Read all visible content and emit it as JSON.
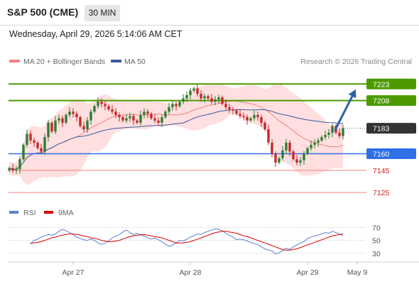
{
  "header": {
    "title": "S&P 500 (CME)",
    "timeframe": "30 MIN",
    "datetime": "Wednesday, April 29, 2026 5:14:06 AM CET"
  },
  "legend": {
    "ma20_bb": "MA 20 + Bollinger Bands",
    "ma50": "MA 50",
    "source": "Research © 2026 Trading Central",
    "rsi": "RSI",
    "ma9": "9MA"
  },
  "colors": {
    "up": "#2e7d32",
    "down": "#c62828",
    "bb_band": "#ffd9d9",
    "ma20": "#f08080",
    "ma50": "#3a5a9c",
    "resistance": "#4c9a00",
    "pivot": "#2f6fe8",
    "support": "#f08080",
    "current": "#333333",
    "rsi": "#5b7fd6",
    "ma9": "#dd0000",
    "arrow": "#2e5fa8"
  },
  "chart_data": [
    {
      "type": "candlestick",
      "ylim": [
        7118,
        7236
      ],
      "x_labels": [
        {
          "index": 18,
          "label": "Apr 27"
        },
        {
          "index": 51,
          "label": "Apr 28"
        },
        {
          "index": 84,
          "label": "Apr 29"
        },
        {
          "index": 98,
          "label": "May 9"
        }
      ],
      "levels": [
        {
          "value": 7223,
          "label": "7223",
          "kind": "resistance"
        },
        {
          "value": 7208,
          "label": "7208",
          "kind": "resistance"
        },
        {
          "value": 7183,
          "label": "7183",
          "kind": "current"
        },
        {
          "value": 7160,
          "label": "7160",
          "kind": "pivot"
        },
        {
          "value": 7145,
          "label": "7145",
          "kind": "support"
        },
        {
          "value": 7125,
          "label": "7125",
          "kind": "support"
        }
      ],
      "current_price": 7183,
      "projection": {
        "from_index": 91,
        "from_value": 7183,
        "to_index": 98,
        "to_value": 7222
      },
      "closes": [
        7147,
        7145,
        7146,
        7155,
        7168,
        7178,
        7172,
        7170,
        7165,
        7162,
        7175,
        7188,
        7180,
        7190,
        7192,
        7188,
        7195,
        7198,
        7196,
        7193,
        7185,
        7182,
        7190,
        7198,
        7203,
        7207,
        7205,
        7203,
        7200,
        7198,
        7195,
        7193,
        7190,
        7192,
        7194,
        7190,
        7188,
        7195,
        7198,
        7196,
        7192,
        7190,
        7188,
        7193,
        7198,
        7202,
        7205,
        7203,
        7207,
        7210,
        7213,
        7217,
        7219,
        7214,
        7210,
        7212,
        7210,
        7207,
        7209,
        7211,
        7205,
        7202,
        7200,
        7199,
        7196,
        7194,
        7193,
        7190,
        7192,
        7195,
        7193,
        7188,
        7182,
        7170,
        7160,
        7152,
        7156,
        7163,
        7170,
        7162,
        7155,
        7152,
        7154,
        7160,
        7165,
        7168,
        7170,
        7172,
        7175,
        7177,
        7179,
        7185,
        7179,
        7176,
        7183
      ]
    },
    {
      "type": "line",
      "title": "RSI",
      "ylim": [
        20,
        78
      ],
      "ticks": [
        30,
        50,
        70
      ],
      "series": [
        {
          "name": "RSI",
          "values": [
            44,
            50,
            52,
            55,
            57,
            59,
            58,
            60,
            64,
            67,
            65,
            62,
            59,
            55,
            53,
            51,
            50,
            52,
            50,
            46,
            44,
            46,
            49,
            54,
            56,
            59,
            63,
            66,
            62,
            59,
            61,
            58,
            57,
            54,
            52,
            54,
            51,
            48,
            44,
            41,
            43,
            46,
            50,
            49,
            52,
            55,
            57,
            60,
            59,
            62,
            64,
            66,
            68,
            67,
            65,
            61,
            58,
            55,
            51,
            52,
            51,
            49,
            47,
            45,
            44,
            40,
            37,
            35,
            34,
            29,
            31,
            34,
            38,
            36,
            40,
            43,
            46,
            48,
            53,
            55,
            57,
            58,
            60,
            62,
            61,
            64,
            62,
            60,
            57
          ]
        },
        {
          "name": "9MA",
          "values": [
            46,
            46,
            47,
            48,
            50,
            52,
            54,
            55,
            57,
            58,
            59,
            60,
            60,
            59,
            58,
            57,
            56,
            54,
            53,
            52,
            50,
            49,
            48,
            48,
            49,
            50,
            52,
            54,
            56,
            57,
            58,
            59,
            59,
            58,
            57,
            56,
            55,
            54,
            52,
            50,
            48,
            46,
            46,
            46,
            47,
            48,
            50,
            52,
            54,
            56,
            58,
            60,
            62,
            63,
            64,
            64,
            63,
            62,
            61,
            59,
            57,
            56,
            54,
            52,
            50,
            48,
            46,
            44,
            42,
            40,
            38,
            36,
            35,
            35,
            36,
            37,
            39,
            41,
            43,
            45,
            47,
            49,
            51,
            53,
            55,
            57,
            58,
            59,
            60
          ]
        }
      ]
    }
  ]
}
